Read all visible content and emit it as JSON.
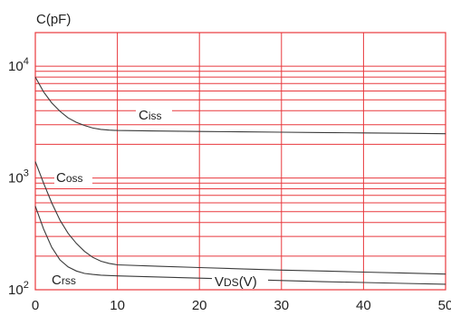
{
  "chart_data": {
    "type": "line",
    "title": "",
    "ylabel": "C(pF)",
    "xlabel": "VDS(V)",
    "xlabel_main": "V",
    "xlabel_sub": "DS",
    "xlabel_unit": "(V)",
    "xlim": [
      0,
      50
    ],
    "ylim": [
      100,
      20000
    ],
    "yscale": "log",
    "grid": true,
    "x_ticks": [
      0,
      10,
      20,
      30,
      40,
      50
    ],
    "x_tick_labels": [
      "0",
      "10",
      "20",
      "30",
      "40",
      "50"
    ],
    "y_major_ticks": [
      {
        "value": 100,
        "base": "10",
        "exp": "2"
      },
      {
        "value": 1000,
        "base": "10",
        "exp": "3"
      },
      {
        "value": 10000,
        "base": "10",
        "exp": "4"
      }
    ],
    "series": [
      {
        "name": "Ciss",
        "label_main": "C",
        "label_sub": "iss",
        "x": [
          0,
          1,
          2,
          3,
          4,
          5,
          6,
          7,
          8,
          9,
          10,
          15,
          20,
          25,
          30,
          35,
          40,
          45,
          50
        ],
        "values": [
          8000,
          5900,
          4700,
          3950,
          3450,
          3150,
          2950,
          2800,
          2720,
          2680,
          2660,
          2630,
          2610,
          2590,
          2570,
          2550,
          2530,
          2510,
          2490
        ]
      },
      {
        "name": "Coss",
        "label_main": "C",
        "label_sub": "oss",
        "x": [
          0,
          1,
          2,
          3,
          4,
          5,
          6,
          7,
          8,
          9,
          10,
          15,
          20,
          25,
          30,
          35,
          40,
          45,
          50
        ],
        "values": [
          1400,
          900,
          600,
          420,
          320,
          260,
          220,
          195,
          180,
          172,
          167,
          162,
          158,
          154,
          150,
          147,
          144,
          141,
          138
        ]
      },
      {
        "name": "Crss",
        "label_main": "C",
        "label_sub": "rss",
        "x": [
          0,
          1,
          2,
          3,
          4,
          5,
          6,
          7,
          8,
          9,
          10,
          15,
          20,
          25,
          30,
          35,
          40,
          45,
          50
        ],
        "values": [
          560,
          350,
          240,
          185,
          160,
          147,
          140,
          137,
          135,
          134,
          133,
          130,
          127,
          124,
          121,
          118,
          116,
          114,
          112
        ]
      }
    ],
    "colors": {
      "grid": "#e8383d",
      "curve": "#3a3a3a",
      "text": "#222222",
      "background": "#ffffff"
    }
  }
}
